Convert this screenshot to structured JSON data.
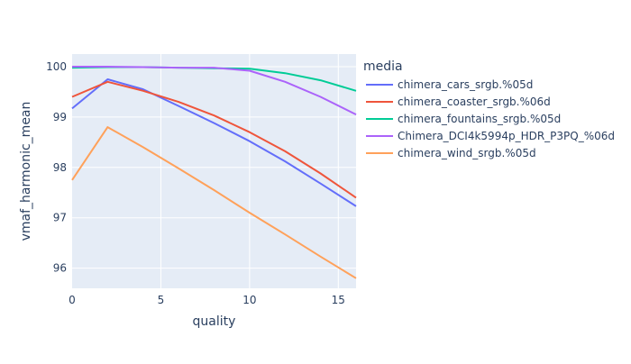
{
  "chart_data": {
    "type": "line",
    "title": "",
    "xlabel": "quality",
    "ylabel": "vmaf_harmonic_mean",
    "xlim": [
      0,
      16
    ],
    "ylim": [
      95.6,
      100.25
    ],
    "xticks": [
      0,
      5,
      10,
      15
    ],
    "yticks": [
      96,
      97,
      98,
      99,
      100
    ],
    "grid": true,
    "legend_title": "media",
    "legend_position": "right",
    "x": [
      0,
      2,
      4,
      6,
      8,
      10,
      12,
      14,
      16
    ],
    "series": [
      {
        "name": "chimera_cars_srgb.%05d",
        "color": "#636efa",
        "values": [
          99.17,
          99.75,
          99.55,
          99.22,
          98.88,
          98.52,
          98.12,
          97.68,
          97.23
        ]
      },
      {
        "name": "chimera_coaster_srgb.%06d",
        "color": "#ef553b",
        "values": [
          99.4,
          99.7,
          99.52,
          99.3,
          99.03,
          98.7,
          98.32,
          97.88,
          97.4
        ]
      },
      {
        "name": "chimera_fountains_srgb.%05d",
        "color": "#00cc96",
        "values": [
          99.98,
          99.99,
          99.99,
          99.98,
          99.97,
          99.96,
          99.87,
          99.73,
          99.52
        ]
      },
      {
        "name": "Chimera_DCI4k5994p_HDR_P3PQ_%06d",
        "color": "#ab63fa",
        "values": [
          100.0,
          100.0,
          99.99,
          99.98,
          99.98,
          99.92,
          99.7,
          99.4,
          99.05
        ]
      },
      {
        "name": "chimera_wind_srgb.%05d",
        "color": "#ffa15a",
        "values": [
          97.75,
          98.8,
          98.4,
          97.98,
          97.55,
          97.1,
          96.67,
          96.23,
          95.8
        ]
      }
    ]
  }
}
